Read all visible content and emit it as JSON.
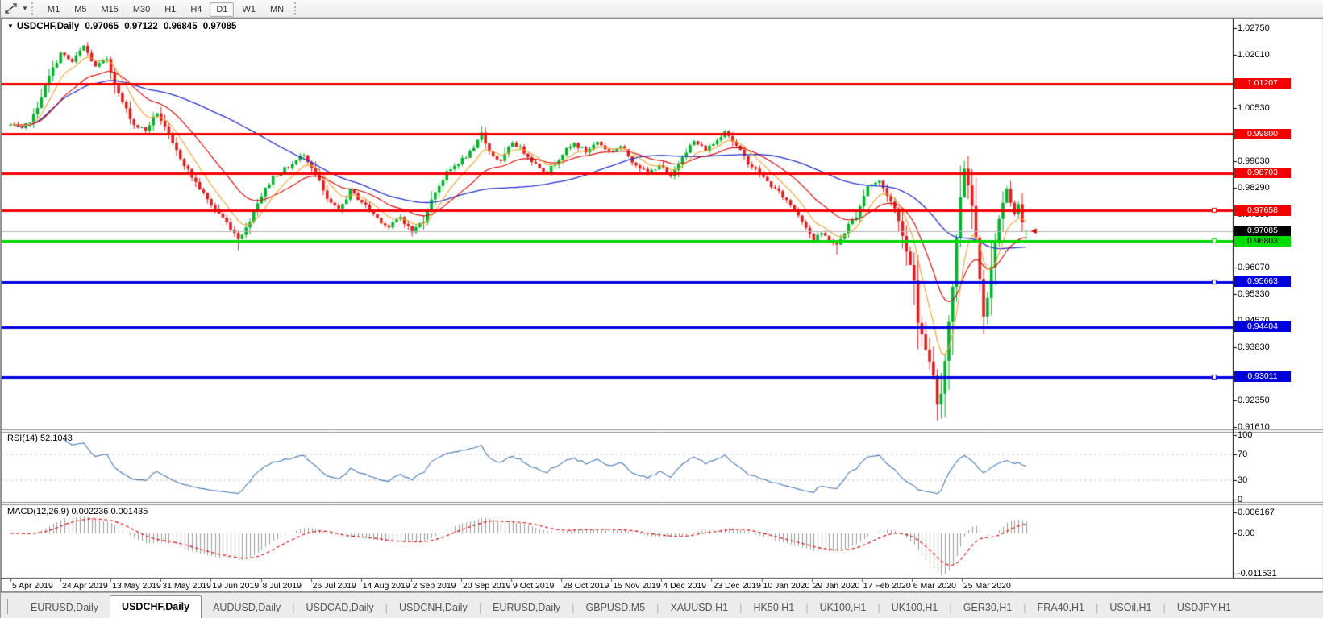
{
  "toolbar": {
    "pointer_tool_icon": "crosshair-cursor-icon",
    "dropdown_icon": "caret-down",
    "timeframes": [
      "M1",
      "M5",
      "M15",
      "M30",
      "H1",
      "H4",
      "D1",
      "W1",
      "MN"
    ],
    "selected_timeframe": "D1"
  },
  "header": {
    "symbol": "USDCHF,Daily",
    "ohlc": {
      "open": "0.97065",
      "high": "0.97122",
      "low": "0.96845",
      "close": "0.97085"
    }
  },
  "indicators": {
    "rsi": {
      "label": "RSI(14)",
      "value": "52.1043",
      "axis_labels": [
        "100",
        "70",
        "30",
        "0"
      ],
      "level_lines": [
        70,
        30
      ]
    },
    "macd": {
      "label": "MACD(12,26,9)",
      "value": "0.002236",
      "signal_value": "0.001435",
      "axis_labels": [
        "0.006167",
        "0.00",
        "-0.011531"
      ]
    }
  },
  "price_axis": {
    "tick_labels": [
      "1.02750",
      "1.02010",
      "1.00530",
      "0.99030",
      "0.98290",
      "0.97550",
      "0.96070",
      "0.95330",
      "0.94570",
      "0.93830",
      "0.92350",
      "0.91610"
    ],
    "line_labels": [
      {
        "text": "1.01207",
        "price": 1.01207,
        "box": "red",
        "handle": false
      },
      {
        "text": "0.99800",
        "price": 0.998,
        "box": "red",
        "handle": false
      },
      {
        "text": "0.98703",
        "price": 0.98703,
        "box": "red",
        "handle": false
      },
      {
        "text": "0.97658",
        "price": 0.97658,
        "box": "red",
        "handle": true
      },
      {
        "text": "0.97085",
        "price": 0.97085,
        "box": "black",
        "handle": false
      },
      {
        "text": "0.96803",
        "price": 0.96803,
        "box": "green",
        "handle": true
      },
      {
        "text": "0.95663",
        "price": 0.95663,
        "box": "blue",
        "handle": true
      },
      {
        "text": "0.94404",
        "price": 0.94404,
        "box": "blue",
        "handle": false
      },
      {
        "text": "0.93011",
        "price": 0.93011,
        "box": "blue",
        "handle": true
      }
    ]
  },
  "x_axis": {
    "dates": [
      "5 Apr 2019",
      "24 Apr 2019",
      "13 May 2019",
      "31 May 2019",
      "19 Jun 2019",
      "8 Jul 2019",
      "26 Jul 2019",
      "14 Aug 2019",
      "2 Sep 2019",
      "20 Sep 2019",
      "9 Oct 2019",
      "28 Oct 2019",
      "15 Nov 2019",
      "4 Dec 2019",
      "23 Dec 2019",
      "10 Jan 2020",
      "29 Jan 2020",
      "17 Feb 2020",
      "6 Mar 2020",
      "25 Mar 2020"
    ]
  },
  "tabs": {
    "active_index": 1,
    "items": [
      "EURUSD,Daily",
      "USDCHF,Daily",
      "AUDUSD,Daily",
      "USDCAD,Daily",
      "USDCNH,Daily",
      "EURUSD,Daily",
      "GBPUSD,M5",
      "XAUUSD,H1",
      "HK50,H1",
      "UK100,H1",
      "UK100,H1",
      "GER30,H1",
      "FRA40,H1",
      "USOil,H1",
      "USDJPY,H1"
    ]
  },
  "colors": {
    "up_candle": "#00b42a",
    "down_candle": "#e01f1f",
    "ma_fast": "#f0a231",
    "ma_mid": "#d40000",
    "ma_slow": "#2431c8",
    "red_line": "#f40000",
    "blue_line": "#0000e0",
    "green_line": "#00d800",
    "current_price_line": "#b4b4b4",
    "rsi_line": "#4a7bb5",
    "macd_hist": "#9c9c9c",
    "macd_signal": "#d40000",
    "box_red_bg": "#f40000",
    "box_blue_bg": "#0000dc",
    "box_green_bg": "#00dc00",
    "box_black_bg": "#000000"
  },
  "chart_data": [
    {
      "type": "candlestick",
      "title": "USDCHF,Daily",
      "ylim": [
        0.9161,
        1.0275
      ],
      "y_ticks": [
        1.0275,
        1.0201,
        1.0053,
        0.9903,
        0.9829,
        0.9755,
        0.9607,
        0.9533,
        0.9457,
        0.9383,
        0.9235,
        0.9161
      ],
      "x_dates": [
        "5 Apr 2019",
        "24 Apr 2019",
        "13 May 2019",
        "31 May 2019",
        "19 Jun 2019",
        "8 Jul 2019",
        "26 Jul 2019",
        "14 Aug 2019",
        "2 Sep 2019",
        "20 Sep 2019",
        "9 Oct 2019",
        "28 Oct 2019",
        "15 Nov 2019",
        "4 Dec 2019",
        "23 Dec 2019",
        "10 Jan 2020",
        "29 Jan 2020",
        "17 Feb 2020",
        "6 Mar 2020",
        "25 Mar 2020"
      ],
      "candle_count": 264,
      "close_anchors": [
        [
          0,
          1.0005
        ],
        [
          3,
          0.999
        ],
        [
          6,
          1.003
        ],
        [
          10,
          1.014
        ],
        [
          13,
          1.0205
        ],
        [
          16,
          1.018
        ],
        [
          19,
          1.0225
        ],
        [
          22,
          1.0165
        ],
        [
          25,
          1.019
        ],
        [
          28,
          1.009
        ],
        [
          32,
          1.0005
        ],
        [
          35,
          0.999
        ],
        [
          38,
          1.004
        ],
        [
          42,
          0.995
        ],
        [
          47,
          0.986
        ],
        [
          51,
          0.9795
        ],
        [
          55,
          0.9745
        ],
        [
          59,
          0.969
        ],
        [
          61,
          0.9715
        ],
        [
          64,
          0.979
        ],
        [
          68,
          0.986
        ],
        [
          73,
          0.9895
        ],
        [
          76,
          0.9925
        ],
        [
          79,
          0.987
        ],
        [
          82,
          0.9795
        ],
        [
          85,
          0.9765
        ],
        [
          88,
          0.982
        ],
        [
          91,
          0.979
        ],
        [
          95,
          0.9745
        ],
        [
          98,
          0.9718
        ],
        [
          101,
          0.9748
        ],
        [
          104,
          0.9706
        ],
        [
          107,
          0.974
        ],
        [
          110,
          0.982
        ],
        [
          113,
          0.987
        ],
        [
          116,
          0.99
        ],
        [
          120,
          0.9935
        ],
        [
          122,
          0.9985
        ],
        [
          124,
          0.993
        ],
        [
          127,
          0.99
        ],
        [
          130,
          0.9958
        ],
        [
          133,
          0.993
        ],
        [
          136,
          0.9895
        ],
        [
          139,
          0.9872
        ],
        [
          143,
          0.9925
        ],
        [
          146,
          0.9952
        ],
        [
          149,
          0.993
        ],
        [
          152,
          0.9958
        ],
        [
          155,
          0.993
        ],
        [
          158,
          0.9945
        ],
        [
          161,
          0.9905
        ],
        [
          165,
          0.9868
        ],
        [
          168,
          0.9895
        ],
        [
          171,
          0.9856
        ],
        [
          174,
          0.992
        ],
        [
          177,
          0.9958
        ],
        [
          180,
          0.9935
        ],
        [
          183,
          0.9962
        ],
        [
          185,
          0.9992
        ],
        [
          187,
          0.996
        ],
        [
          191,
          0.99
        ],
        [
          194,
          0.9868
        ],
        [
          197,
          0.9835
        ],
        [
          200,
          0.9805
        ],
        [
          203,
          0.977
        ],
        [
          206,
          0.9722
        ],
        [
          208,
          0.9682
        ],
        [
          210,
          0.9702
        ],
        [
          214,
          0.9667
        ],
        [
          217,
          0.9725
        ],
        [
          219,
          0.9752
        ],
        [
          222,
          0.9835
        ],
        [
          225,
          0.9847
        ],
        [
          227,
          0.981
        ],
        [
          229,
          0.977
        ],
        [
          231,
          0.97
        ],
        [
          232,
          0.9652
        ],
        [
          234,
          0.9575
        ],
        [
          235,
          0.945
        ],
        [
          237,
          0.938
        ],
        [
          239,
          0.93
        ],
        [
          240,
          0.9225
        ],
        [
          241,
          0.9255
        ],
        [
          242,
          0.935
        ],
        [
          243,
          0.9455
        ],
        [
          244,
          0.9555
        ],
        [
          245,
          0.9685
        ],
        [
          246,
          0.9805
        ],
        [
          247,
          0.9885
        ],
        [
          248,
          0.984
        ],
        [
          249,
          0.978
        ],
        [
          250,
          0.969
        ],
        [
          251,
          0.958
        ],
        [
          252,
          0.9475
        ],
        [
          253,
          0.9525
        ],
        [
          254,
          0.9605
        ],
        [
          255,
          0.968
        ],
        [
          256,
          0.9742
        ],
        [
          257,
          0.9782
        ],
        [
          258,
          0.9822
        ],
        [
          259,
          0.979
        ],
        [
          260,
          0.9762
        ],
        [
          261,
          0.9782
        ],
        [
          262,
          0.973
        ],
        [
          263,
          0.97085
        ]
      ],
      "high_overrides": [
        [
          19,
          1.02264
        ],
        [
          122,
          1.0002
        ],
        [
          247,
          0.9905
        ]
      ],
      "low_overrides": [
        [
          59,
          0.9655
        ],
        [
          104,
          0.9693
        ],
        [
          214,
          0.9642
        ],
        [
          240,
          0.918
        ],
        [
          252,
          0.942
        ]
      ],
      "last_candle_ohlc": [
        0.97065,
        0.97122,
        0.96845,
        0.97085
      ],
      "current_price": 0.97085,
      "horizontal_lines": [
        {
          "price": 1.01207,
          "kind": "red"
        },
        {
          "price": 0.998,
          "kind": "red"
        },
        {
          "price": 0.98703,
          "kind": "red"
        },
        {
          "price": 0.97658,
          "kind": "red",
          "handle": true
        },
        {
          "price": 0.97085,
          "kind": "current"
        },
        {
          "price": 0.96803,
          "kind": "green",
          "handle": true
        },
        {
          "price": 0.95663,
          "kind": "blue",
          "handle": true
        },
        {
          "price": 0.94404,
          "kind": "blue"
        },
        {
          "price": 0.93011,
          "kind": "blue",
          "handle": true
        }
      ],
      "moving_averages": [
        {
          "name": "fast-ema-8",
          "color": "#f0a231"
        },
        {
          "name": "mid-ema-21",
          "color": "#d40000"
        },
        {
          "name": "slow-sma-55",
          "color": "#2431c8"
        }
      ]
    },
    {
      "type": "line",
      "name": "RSI(14)",
      "current": 52.1043,
      "range": [
        0,
        100
      ],
      "levels": [
        70,
        30
      ],
      "axis_labels": [
        "100",
        "70",
        "30",
        "0"
      ],
      "source": "computed from candle closes"
    },
    {
      "type": "bar",
      "name": "MACD(12,26,9)",
      "current_main": 0.002236,
      "current_signal": 0.001435,
      "axis_labels": [
        "0.006167",
        "0.00",
        "-0.011531"
      ],
      "source": "computed from candle closes"
    }
  ]
}
